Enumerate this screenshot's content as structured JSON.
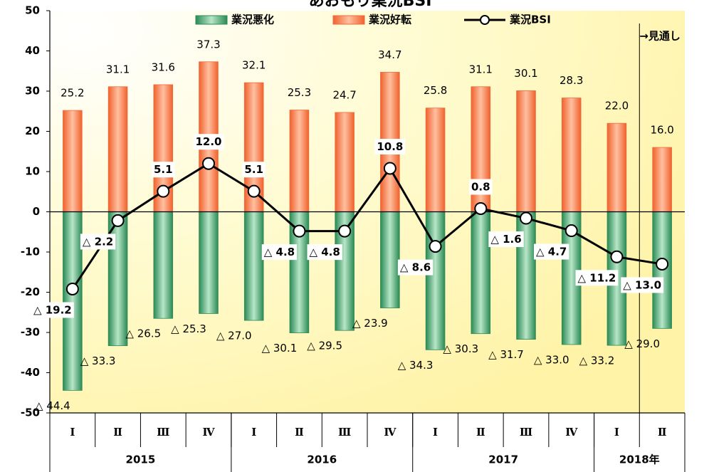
{
  "chart_data": {
    "type": "bar_line",
    "title": "あおもり業況BSI",
    "categories": [
      "Ⅰ",
      "Ⅱ",
      "Ⅲ",
      "Ⅳ",
      "Ⅰ",
      "Ⅱ",
      "Ⅲ",
      "Ⅳ",
      "Ⅰ",
      "Ⅱ",
      "Ⅲ",
      "Ⅳ",
      "Ⅰ",
      "Ⅱ"
    ],
    "x_groups": [
      {
        "label": "2015",
        "count": 4
      },
      {
        "label": "2016",
        "count": 4
      },
      {
        "label": "2017",
        "count": 4
      },
      {
        "label": "2018年",
        "count": 2
      }
    ],
    "series": [
      {
        "name": "業況悪化",
        "type": "bar",
        "color": "#2e8b57",
        "values": [
          -44.4,
          -33.3,
          -26.5,
          -25.3,
          -27.0,
          -30.1,
          -29.5,
          -23.9,
          -34.3,
          -30.3,
          -31.7,
          -33.0,
          -33.2,
          -29.0
        ],
        "value_labels": [
          "△ 44.4",
          "△ 33.3",
          "△ 26.5",
          "△ 25.3",
          "△ 27.0",
          "△ 30.1",
          "△ 29.5",
          "△ 23.9",
          "△ 34.3",
          "△ 30.3",
          "△ 31.7",
          "△ 33.0",
          "△ 33.2",
          "△ 29.0"
        ]
      },
      {
        "name": "業況好転",
        "type": "bar",
        "color": "#f26a3a",
        "values": [
          25.2,
          31.1,
          31.6,
          37.3,
          32.1,
          25.3,
          24.7,
          34.7,
          25.8,
          31.1,
          30.1,
          28.3,
          22.0,
          16.0
        ],
        "value_labels": [
          "25.2",
          "31.1",
          "31.6",
          "37.3",
          "32.1",
          "25.3",
          "24.7",
          "34.7",
          "25.8",
          "31.1",
          "30.1",
          "28.3",
          "22.0",
          "16.0"
        ]
      },
      {
        "name": "業況BSI",
        "type": "line",
        "color": "#000000",
        "values": [
          -19.2,
          -2.2,
          5.1,
          12.0,
          5.1,
          -4.8,
          -4.8,
          10.8,
          -8.6,
          0.8,
          -1.6,
          -4.7,
          -11.2,
          -13.0
        ],
        "value_labels": [
          "△ 19.2",
          "△ 2.2",
          "5.1",
          "12.0",
          "5.1",
          "△ 4.8",
          "△ 4.8",
          "10.8",
          "△ 8.6",
          "0.8",
          "△ 1.6",
          "△ 4.7",
          "△ 11.2",
          "△ 13.0"
        ]
      }
    ],
    "ylim": [
      -50,
      50
    ],
    "yticks": [
      -50,
      -40,
      -30,
      -20,
      -10,
      0,
      10,
      20,
      30,
      40,
      50
    ],
    "annotation": "→見通し",
    "forecast_from": 13
  }
}
